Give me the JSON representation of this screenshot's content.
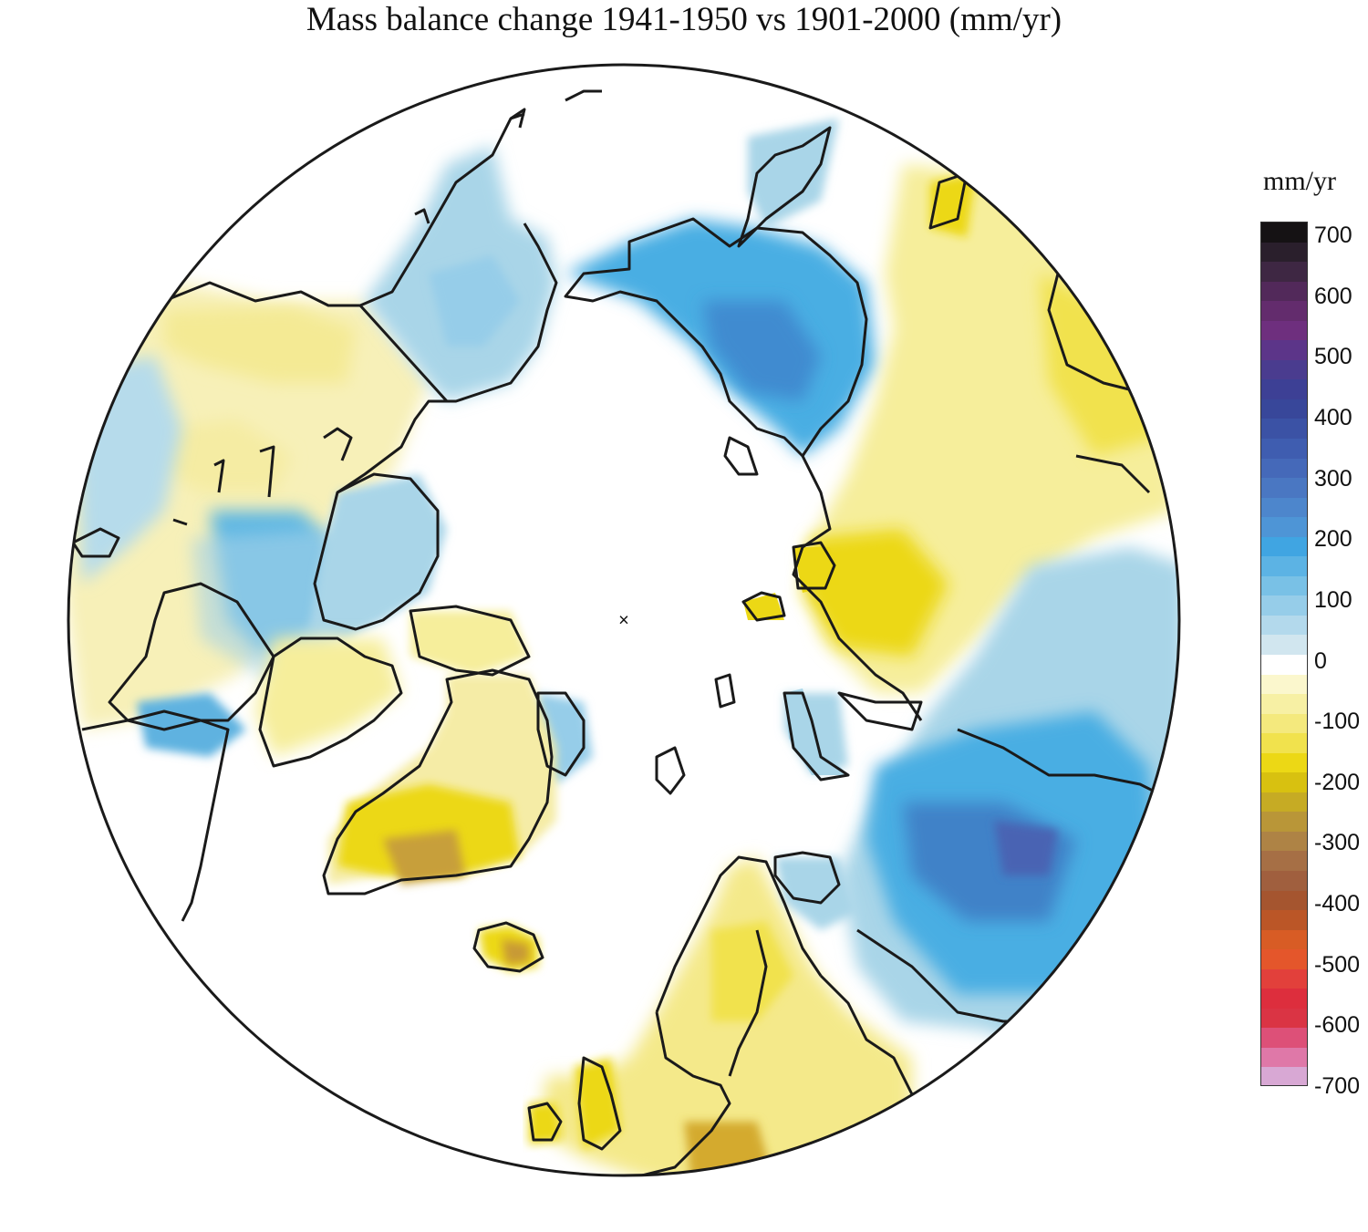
{
  "title": "Mass balance change 1941-1950 vs 1901-2000 (mm/yr)",
  "legend": {
    "unit": "mm/yr",
    "ticks": [
      "700",
      "600",
      "500",
      "400",
      "300",
      "200",
      "100",
      "0",
      "-100",
      "-200",
      "-300",
      "-400",
      "-500",
      "-600",
      "-700"
    ],
    "colors": [
      "#151214",
      "#2a1f2c",
      "#3e2743",
      "#52295a",
      "#632c6d",
      "#6e2f7e",
      "#5c3589",
      "#4a3c8f",
      "#3d4095",
      "#38479a",
      "#3b52a5",
      "#3f5db0",
      "#4569b9",
      "#4a77c2",
      "#4d86cc",
      "#4e95d6",
      "#40a5e2",
      "#5cb3e4",
      "#79c1e6",
      "#96cde9",
      "#b3d9ec",
      "#d1e6ef",
      "#ffffff",
      "#fbf7cd",
      "#f7f0a4",
      "#f4e97d",
      "#f1e24d",
      "#ecd815",
      "#d8c110",
      "#c6ab24",
      "#b99638",
      "#ae8345",
      "#a66f45",
      "#a05f3e",
      "#a5552f",
      "#bb5627",
      "#d85c25",
      "#e4562b",
      "#e2403b",
      "#dd2e3d",
      "#da3444",
      "#dd5078",
      "#df78a8",
      "#d8a8d4"
    ]
  },
  "map": {
    "projection": "north-polar-stereographic",
    "pole_marker": "×",
    "legend_position": "right",
    "colors": {
      "positive_light": "#a9d5e8",
      "positive_mid": "#4bb0e3",
      "positive_strong": "#4180c6",
      "negative_light": "#f5eca6",
      "negative_mid": "#ecd815",
      "negative_strong": "#b98b3a",
      "coast": "#1a1a1a"
    }
  }
}
